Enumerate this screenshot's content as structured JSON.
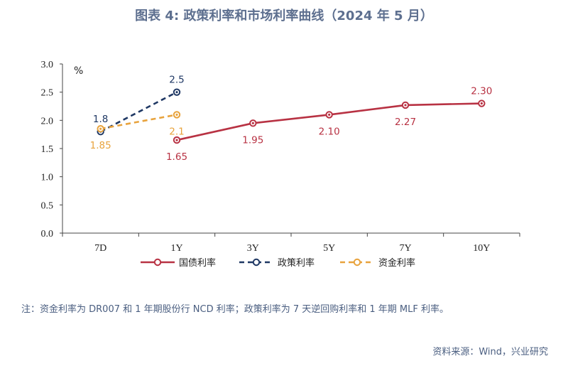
{
  "title": "图表 4:  政策利率和市场利率曲线（2024 年 5 月）",
  "note": "注：资金利率为 DR007 和 1 年期股份行 NCD 利率；政策利率为 7 天逆回购利率和 1 年期 MLF 利率。",
  "source": "资料来源：Wind，兴业研究",
  "chart_data": {
    "type": "line",
    "title": "图表 4:  政策利率和市场利率曲线（2024 年 5 月）",
    "ylabel": "%",
    "xlabel": "",
    "ylim": [
      0.0,
      3.0
    ],
    "yticks": [
      "0.0",
      "0.5",
      "1.0",
      "1.5",
      "2.0",
      "2.5",
      "3.0"
    ],
    "categories": [
      "7D",
      "1Y",
      "3Y",
      "5Y",
      "7Y",
      "10Y"
    ],
    "grid": false,
    "legend_position": "bottom",
    "series": [
      {
        "name": "国债利率",
        "color": "#b83243",
        "dash": "solid",
        "x": [
          "1Y",
          "3Y",
          "5Y",
          "7Y",
          "10Y"
        ],
        "values": [
          1.65,
          1.95,
          2.1,
          2.27,
          2.3
        ],
        "labels": [
          "1.65",
          "1.95",
          "2.10",
          "2.27",
          "2.30"
        ],
        "label_position": [
          "below",
          "below",
          "below",
          "below",
          "above"
        ]
      },
      {
        "name": "政策利率",
        "color": "#1f3864",
        "dash": "dashed",
        "x": [
          "7D",
          "1Y"
        ],
        "values": [
          1.8,
          2.5
        ],
        "labels": [
          "1.8",
          "2.5"
        ],
        "label_position": [
          "above",
          "above"
        ]
      },
      {
        "name": "资金利率",
        "color": "#e8a33d",
        "dash": "dashed",
        "x": [
          "7D",
          "1Y"
        ],
        "values": [
          1.85,
          2.1
        ],
        "labels": [
          "1.85",
          "2.1"
        ],
        "label_position": [
          "below",
          "below"
        ]
      }
    ]
  }
}
